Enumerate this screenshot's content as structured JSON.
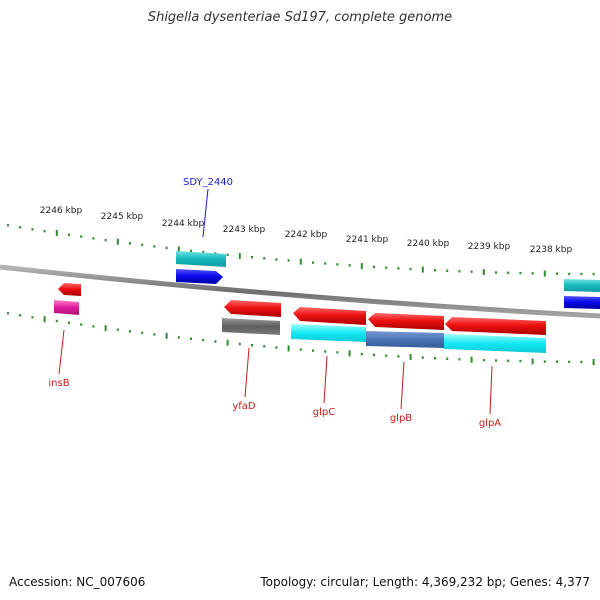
{
  "title": "Shigella dysenteriae Sd197, complete genome",
  "footer": {
    "accession": "Accession: NC_007606",
    "summary": "Topology: circular; Length: 4,369,232 bp; Genes: 4,377"
  },
  "colors": {
    "backbone": "#8a8a8a",
    "tick": "#2e8b2e",
    "forward_label": "#1a1acc",
    "reverse_label": "#cc1a1a"
  },
  "scale_labels": [
    "2246 kbp",
    "2245 kbp",
    "2244 kbp",
    "2243 kbp",
    "2242 kbp",
    "2241 kbp",
    "2240 kbp",
    "2239 kbp",
    "2238 kbp"
  ],
  "gene_labels": {
    "sdy_2440": "SDY_2440",
    "insB": "insB",
    "yfaD": "yfaD",
    "glpC": "glpC",
    "glpB": "glpB",
    "glpA": "glpA"
  }
}
